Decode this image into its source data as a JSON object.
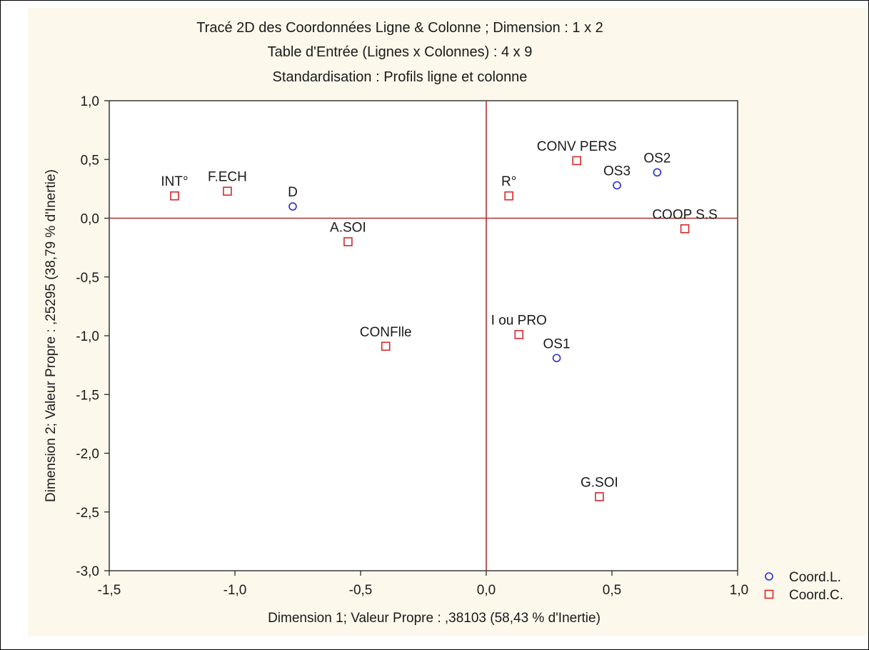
{
  "chart_data": {
    "type": "scatter",
    "title": [
      "Tracé 2D des Coordonnées Ligne & Colonne ; Dimension :  1 x  2",
      "Table d'Entrée (Lignes x Colonnes) : 4 x 9",
      "Standardisation : Profils ligne et colonne"
    ],
    "xlabel": "Dimension 1; Valeur Propre : ,38103 (58,43  % d'Inertie)",
    "ylabel": "Dimension 2; Valeur Propre : ,25295 (38,79  % d'Inertie)",
    "xlim": [
      -1.5,
      1.0
    ],
    "ylim": [
      -3.0,
      1.0
    ],
    "xticks": [
      -1.5,
      -1.0,
      -0.5,
      0.0,
      0.5,
      1.0
    ],
    "xtick_labels": [
      "-1,5",
      "-1,0",
      "-0,5",
      "0,0",
      "0,5",
      "1,0"
    ],
    "yticks": [
      1.0,
      0.5,
      0.0,
      -0.5,
      -1.0,
      -1.5,
      -2.0,
      -2.5,
      -3.0
    ],
    "ytick_labels": [
      "1,0",
      "0,5",
      "0,0",
      "-0,5",
      "-1,0",
      "-1,5",
      "-2,0",
      "-2,5",
      "-3,0"
    ],
    "reference_lines": {
      "x": 0.0,
      "y": 0.0
    },
    "legend_position": "bottom-right, outside plot",
    "series": [
      {
        "name": "Coord.L.",
        "marker": "circle",
        "color": "#2b2bd9",
        "points": [
          {
            "label": "D",
            "x": -0.77,
            "y": 0.1
          },
          {
            "label": "OS3",
            "x": 0.52,
            "y": 0.28
          },
          {
            "label": "OS2",
            "x": 0.68,
            "y": 0.39
          },
          {
            "label": "OS1",
            "x": 0.28,
            "y": -1.19
          }
        ]
      },
      {
        "name": "Coord.C.",
        "marker": "square",
        "color": "#d62728",
        "points": [
          {
            "label": "INT°",
            "x": -1.24,
            "y": 0.19
          },
          {
            "label": "F.ECH",
            "x": -1.03,
            "y": 0.23
          },
          {
            "label": "A.SOI",
            "x": -0.55,
            "y": -0.2
          },
          {
            "label": "CONFlle",
            "x": -0.4,
            "y": -1.09
          },
          {
            "label": "R°",
            "x": 0.09,
            "y": 0.19
          },
          {
            "label": "CONV PERS",
            "x": 0.36,
            "y": 0.49
          },
          {
            "label": "COOP S.S",
            "x": 0.79,
            "y": -0.09
          },
          {
            "label": "I ou PRO",
            "x": 0.13,
            "y": -0.99
          },
          {
            "label": "G.SOI",
            "x": 0.45,
            "y": -2.37
          }
        ]
      }
    ]
  },
  "colors": {
    "axes": "#1a1a1a",
    "reference_line": "#b03030",
    "panel_background": "#fcf8ec",
    "plot_background": "#ffffff"
  }
}
